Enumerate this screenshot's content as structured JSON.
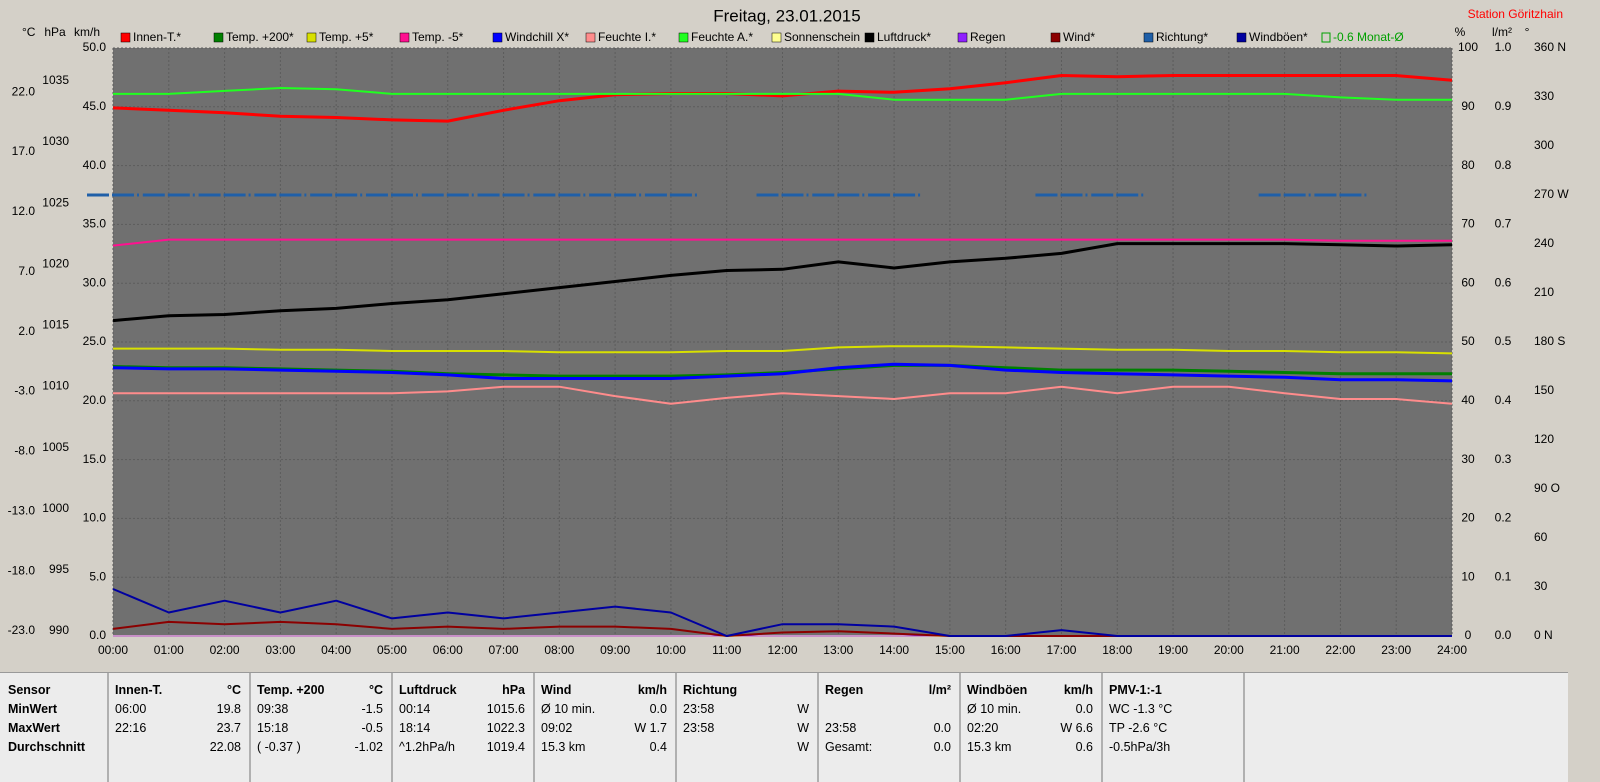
{
  "chart_data": {
    "type": "line",
    "title": "Freitag, 23.01.2015",
    "subtitle": "Station Göritzhain",
    "x": [
      0,
      1,
      2,
      3,
      4,
      5,
      6,
      7,
      8,
      9,
      10,
      11,
      12,
      13,
      14,
      15,
      16,
      17,
      18,
      19,
      20,
      21,
      22,
      23,
      24
    ],
    "xlim": [
      0,
      24
    ],
    "xticks": [
      {
        "value": 0,
        "label": "00:00"
      },
      {
        "value": 1,
        "label": "01:00"
      },
      {
        "value": 2,
        "label": "02:00"
      },
      {
        "value": 3,
        "label": "03:00"
      },
      {
        "value": 4,
        "label": "04:00"
      },
      {
        "value": 5,
        "label": "05:00"
      },
      {
        "value": 6,
        "label": "06:00"
      },
      {
        "value": 7,
        "label": "07:00"
      },
      {
        "value": 8,
        "label": "08:00"
      },
      {
        "value": 9,
        "label": "09:00"
      },
      {
        "value": 10,
        "label": "10:00"
      },
      {
        "value": 11,
        "label": "11:00"
      },
      {
        "value": 12,
        "label": "12:00"
      },
      {
        "value": 13,
        "label": "13:00"
      },
      {
        "value": 14,
        "label": "14:00"
      },
      {
        "value": 15,
        "label": "15:00"
      },
      {
        "value": 16,
        "label": "16:00"
      },
      {
        "value": 17,
        "label": "17:00"
      },
      {
        "value": 18,
        "label": "18:00"
      },
      {
        "value": 19,
        "label": "19:00"
      },
      {
        "value": 20,
        "label": "20:00"
      },
      {
        "value": 21,
        "label": "21:00"
      },
      {
        "value": 22,
        "label": "22:00"
      },
      {
        "value": 23,
        "label": "23:00"
      },
      {
        "value": 24,
        "label": "24:00"
      }
    ],
    "grid": true,
    "axes": {
      "c": {
        "label": "°C",
        "side": "left",
        "lim": [
          -23,
          26.1
        ],
        "ticks": [
          {
            "value": -23,
            "label": "-23.0"
          },
          {
            "value": -18,
            "label": "-18.0"
          },
          {
            "value": -13,
            "label": "-13.0"
          },
          {
            "value": -8,
            "label": "-8.0"
          },
          {
            "value": -3,
            "label": "-3.0"
          },
          {
            "value": 2,
            "label": "2.0"
          },
          {
            "value": 7,
            "label": "7.0"
          },
          {
            "value": 12,
            "label": "12.0"
          },
          {
            "value": 17,
            "label": "17.0"
          },
          {
            "value": 22,
            "label": "22.0"
          }
        ]
      },
      "hpa": {
        "label": "hPa",
        "side": "left",
        "lim": [
          990,
          1038.1
        ],
        "ticks": [
          990,
          995,
          1000,
          1005,
          1010,
          1015,
          1020,
          1025,
          1030,
          1035
        ]
      },
      "kmh": {
        "label": "km/h",
        "side": "left",
        "lim": [
          0,
          50
        ],
        "ticks": [
          {
            "value": 0,
            "label": "0.0"
          },
          {
            "value": 5,
            "label": "5.0"
          },
          {
            "value": 10,
            "label": "10.0"
          },
          {
            "value": 15,
            "label": "15.0"
          },
          {
            "value": 20,
            "label": "20.0"
          },
          {
            "value": 25,
            "label": "25.0"
          },
          {
            "value": 30,
            "label": "30.0"
          },
          {
            "value": 35,
            "label": "35.0"
          },
          {
            "value": 40,
            "label": "40.0"
          },
          {
            "value": 45,
            "label": "45.0"
          },
          {
            "value": 50,
            "label": "50.0"
          }
        ]
      },
      "pct": {
        "label": "%",
        "side": "right",
        "lim": [
          0,
          100
        ],
        "ticks": [
          0,
          10,
          20,
          30,
          40,
          50,
          60,
          70,
          80,
          90,
          100
        ]
      },
      "lm2": {
        "label": "l/m²",
        "side": "right",
        "lim": [
          0,
          1
        ],
        "ticks": [
          {
            "value": 0,
            "label": "0.0"
          },
          {
            "value": 0.1,
            "label": "0.1"
          },
          {
            "value": 0.2,
            "label": "0.2"
          },
          {
            "value": 0.3,
            "label": "0.3"
          },
          {
            "value": 0.4,
            "label": "0.4"
          },
          {
            "value": 0.5,
            "label": "0.5"
          },
          {
            "value": 0.6,
            "label": "0.6"
          },
          {
            "value": 0.7,
            "label": "0.7"
          },
          {
            "value": 0.8,
            "label": "0.8"
          },
          {
            "value": 0.9,
            "label": "0.9"
          },
          {
            "value": 1,
            "label": "1.0"
          }
        ]
      },
      "deg": {
        "label": "°",
        "side": "right",
        "lim": [
          0,
          360
        ],
        "ticks": [
          {
            "value": 0,
            "label": "0  N"
          },
          30,
          60,
          {
            "value": 90,
            "label": "90  O"
          },
          120,
          150,
          {
            "value": 180,
            "label": "180  S"
          },
          210,
          240,
          {
            "value": 270,
            "label": "270  W"
          },
          300,
          330,
          {
            "value": 360,
            "label": "360  N"
          }
        ]
      }
    },
    "series": [
      {
        "name": "Innen-T.*",
        "color": "#ff0000",
        "axis": "c",
        "width": 3,
        "values": [
          21.1,
          20.9,
          20.7,
          20.4,
          20.3,
          20.1,
          20.0,
          20.9,
          21.7,
          22.2,
          22.3,
          22.3,
          22.1,
          22.5,
          22.4,
          22.7,
          23.2,
          23.8,
          23.7,
          23.8,
          23.8,
          23.8,
          23.8,
          23.8,
          23.4
        ]
      },
      {
        "name": "Temp. +200*",
        "color": "#008000",
        "axis": "c",
        "width": 3,
        "values": [
          -0.5,
          -0.6,
          -0.6,
          -0.7,
          -0.8,
          -0.9,
          -1.1,
          -1.2,
          -1.3,
          -1.3,
          -1.3,
          -1.2,
          -1.0,
          -0.7,
          -0.4,
          -0.4,
          -0.6,
          -0.8,
          -0.8,
          -0.8,
          -0.9,
          -1.0,
          -1.1,
          -1.1,
          -1.1
        ]
      },
      {
        "name": "Temp. +5*",
        "color": "#d8e000",
        "axis": "c",
        "width": 2,
        "values": [
          1.0,
          1.0,
          1.0,
          0.9,
          0.9,
          0.8,
          0.8,
          0.8,
          0.7,
          0.7,
          0.7,
          0.8,
          0.8,
          1.1,
          1.2,
          1.2,
          1.1,
          1.0,
          0.9,
          0.9,
          0.8,
          0.8,
          0.7,
          0.7,
          0.6
        ]
      },
      {
        "name": "Temp. -5*",
        "color": "#ff1090",
        "axis": "c",
        "width": 2,
        "values": [
          9.6,
          10.1,
          10.1,
          10.1,
          10.1,
          10.1,
          10.1,
          10.1,
          10.1,
          10.1,
          10.1,
          10.1,
          10.1,
          10.1,
          10.1,
          10.1,
          10.1,
          10.1,
          10.1,
          10.1,
          10.1,
          10.1,
          10.0,
          10.0,
          10.0
        ]
      },
      {
        "name": "Windchill X*",
        "color": "#0000ff",
        "axis": "c",
        "width": 3,
        "values": [
          -0.6,
          -0.7,
          -0.7,
          -0.8,
          -0.9,
          -1.0,
          -1.2,
          -1.5,
          -1.5,
          -1.5,
          -1.5,
          -1.3,
          -1.1,
          -0.6,
          -0.3,
          -0.4,
          -0.8,
          -1.0,
          -1.1,
          -1.2,
          -1.3,
          -1.4,
          -1.6,
          -1.6,
          -1.7
        ]
      },
      {
        "name": "Feuchte I.*",
        "color": "#ff8c8c",
        "axis": "pct",
        "width": 2,
        "values": [
          41.3,
          41.3,
          41.3,
          41.3,
          41.3,
          41.3,
          41.6,
          42.4,
          42.4,
          40.8,
          39.5,
          40.5,
          41.3,
          40.8,
          40.3,
          41.3,
          41.3,
          42.4,
          41.3,
          42.4,
          42.4,
          41.3,
          40.3,
          40.3,
          39.5
        ]
      },
      {
        "name": "Feuchte A.*",
        "color": "#20ff20",
        "axis": "pct",
        "width": 2,
        "values": [
          92.2,
          92.2,
          92.7,
          93.2,
          93.0,
          92.2,
          92.2,
          92.2,
          92.2,
          92.2,
          92.2,
          92.2,
          92.2,
          92.2,
          91.2,
          91.2,
          91.2,
          92.2,
          92.2,
          92.2,
          92.2,
          92.2,
          91.6,
          91.2,
          91.2
        ]
      },
      {
        "name": "Sonnenschein",
        "color": "#ffff90",
        "axis": "lm2",
        "width": 2,
        "values": [
          0,
          0,
          0,
          0,
          0,
          0,
          0,
          0,
          0,
          0,
          0,
          0,
          0,
          0,
          0,
          0,
          0,
          0,
          0,
          0,
          0,
          0,
          0,
          0,
          0
        ]
      },
      {
        "name": "Luftdruck*",
        "color": "#000000",
        "axis": "hpa",
        "width": 3,
        "values": [
          1015.8,
          1016.2,
          1016.3,
          1016.6,
          1016.8,
          1017.2,
          1017.5,
          1018.0,
          1018.5,
          1019.0,
          1019.5,
          1019.9,
          1020.0,
          1020.6,
          1020.1,
          1020.6,
          1020.9,
          1021.3,
          1022.1,
          1022.1,
          1022.1,
          1022.1,
          1022.0,
          1021.9,
          1022.0
        ]
      },
      {
        "name": "Regen",
        "color": "#9020ff",
        "axis": "lm2",
        "width": 1,
        "values": [
          0,
          0,
          0,
          0,
          0,
          0,
          0,
          0,
          0,
          0,
          0,
          0,
          0,
          0,
          0,
          0,
          0,
          0,
          0,
          0,
          0,
          0,
          0,
          0,
          0
        ]
      },
      {
        "name": "Wind*",
        "color": "#8b0000",
        "axis": "kmh",
        "width": 2,
        "values": [
          0.6,
          1.2,
          1.0,
          1.2,
          1.0,
          0.6,
          0.8,
          0.6,
          0.8,
          0.8,
          0.6,
          0,
          0.3,
          0.4,
          0.2,
          0,
          0,
          0,
          0,
          0,
          0,
          0,
          0,
          0,
          0
        ]
      },
      {
        "name": "Richtung*",
        "color": "#1f5fa8",
        "axis": "deg",
        "width": 3,
        "style": "dash",
        "values": [
          270,
          270,
          270,
          270,
          270,
          270,
          270,
          270,
          270,
          270,
          270,
          null,
          270,
          270,
          270,
          null,
          null,
          270,
          270,
          null,
          null,
          270,
          270,
          null,
          null
        ]
      },
      {
        "name": "Windböen*",
        "color": "#0000a0",
        "axis": "kmh",
        "width": 2,
        "values": [
          4,
          2,
          3,
          2,
          3,
          1.5,
          2,
          1.5,
          2,
          2.5,
          2,
          0,
          1,
          1,
          0.8,
          0,
          0,
          0.5,
          0,
          0,
          0,
          0,
          0,
          0,
          0
        ]
      }
    ],
    "note": "-0.6 Monat-Ø",
    "note_color": "#00a000"
  },
  "table": {
    "columns": [
      {
        "header": "Sensor",
        "rows": [
          [
            "MinWert",
            null
          ],
          [
            "MaxWert",
            null
          ],
          [
            "Durchschnitt",
            null
          ]
        ]
      },
      {
        "header": "Innen-T.",
        "unit": "°C",
        "rows": [
          [
            "06:00",
            "19.8"
          ],
          [
            "22:16",
            "23.7"
          ],
          [
            null,
            "22.08"
          ]
        ]
      },
      {
        "header": "Temp. +200",
        "unit": "°C",
        "rows": [
          [
            "09:38",
            "-1.5"
          ],
          [
            "15:18",
            "-0.5"
          ],
          [
            "( -0.37 )",
            "-1.02"
          ]
        ]
      },
      {
        "header": "Luftdruck",
        "unit": "hPa",
        "rows": [
          [
            "00:14",
            "1015.6"
          ],
          [
            "18:14",
            "1022.3"
          ],
          [
            "^1.2hPa/h",
            "1019.4"
          ]
        ]
      },
      {
        "header": "Wind",
        "unit": "km/h",
        "rows": [
          [
            "Ø 10 min.",
            "0.0"
          ],
          [
            "09:02",
            "W 1.7"
          ],
          [
            "15.3 km",
            "0.4"
          ]
        ]
      },
      {
        "header": "Richtung",
        "rows": [
          [
            "23:58",
            "W"
          ],
          [
            "23:58",
            "W"
          ],
          [
            null,
            "W"
          ]
        ]
      },
      {
        "header": "Regen",
        "unit": "l/m²",
        "rows": [
          [
            null,
            null
          ],
          [
            "23:58",
            "0.0"
          ],
          [
            "Gesamt:",
            "0.0"
          ]
        ]
      },
      {
        "header": "Windböen",
        "unit": "km/h",
        "rows": [
          [
            "Ø 10 min.",
            "0.0"
          ],
          [
            "02:20",
            "W 6.6"
          ],
          [
            "15.3 km",
            "0.6"
          ]
        ]
      },
      {
        "header": "PMV-1:-1",
        "rows": [
          [
            "WC -1.3 °C",
            null
          ],
          [
            "TP -2.6 °C",
            null
          ],
          [
            "-0.5hPa/3h",
            null
          ]
        ]
      }
    ]
  }
}
